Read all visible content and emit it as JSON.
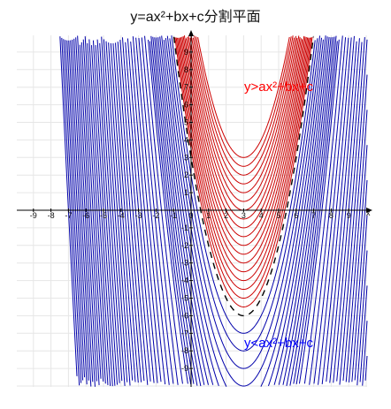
{
  "chart_data": {
    "type": "line",
    "title": "y=ax²+bx+c分割平面",
    "axis_label_x": "x",
    "xlim": [
      -10,
      10
    ],
    "ylim": [
      -10,
      10
    ],
    "x_ticks": [
      -9,
      -8,
      -7,
      -6,
      -5,
      -4,
      -3,
      -2,
      -1,
      0,
      1,
      2,
      3,
      4,
      5,
      6,
      7,
      8,
      9
    ],
    "y_ticks": [
      9,
      8,
      7,
      6,
      5,
      4,
      3,
      2,
      1,
      -1,
      -2,
      -3,
      -4,
      -5,
      -6,
      -7,
      -8,
      -9
    ],
    "grid": true,
    "boundary_curve": {
      "vertex": [
        3,
        -6
      ],
      "a": 1,
      "style": "dashed",
      "color": "#000000"
    },
    "above_family": {
      "a": 1,
      "vertex_x": 3,
      "vertex_y_values": [
        -5.5,
        -5,
        -4.5,
        -4,
        -3.5,
        -3,
        -2.5,
        -2,
        -1.5,
        -1,
        -0.5,
        0,
        0.5,
        1,
        1.5,
        2,
        2.5,
        3
      ],
      "color": "#cc0000"
    },
    "below_family": {
      "a": 1,
      "vertex_x": 3,
      "vertex_y_values": [
        -7,
        -8,
        -9,
        -10,
        -11,
        -12,
        -13,
        -14,
        -15,
        -16,
        -17,
        -18,
        -19,
        -20,
        -22,
        -24,
        -26,
        -28,
        -30,
        -32,
        -34,
        -36,
        -38,
        -40,
        -42,
        -44,
        -46,
        -48,
        -50,
        -52,
        -54,
        -56,
        -58,
        -60,
        -62,
        -64,
        -66,
        -68,
        -70,
        -72,
        -74,
        -76,
        -78,
        -80,
        -82,
        -84,
        -86,
        -88,
        -90,
        -92,
        -94,
        -96,
        -98,
        -100
      ],
      "color": "#0000aa"
    },
    "annotations": [
      {
        "text": "y>ax²+bx+c",
        "color": "#ff0000"
      },
      {
        "text": "y<ax²+bx+c",
        "color": "#0000ff"
      }
    ]
  }
}
